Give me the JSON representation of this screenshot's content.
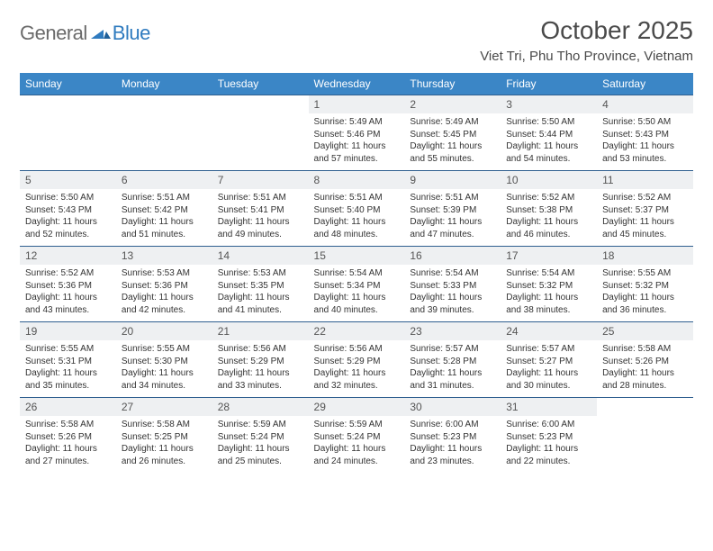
{
  "logo": {
    "text1": "General",
    "text2": "Blue"
  },
  "title": "October 2025",
  "location": "Viet Tri, Phu Tho Province, Vietnam",
  "colors": {
    "header_bg": "#3b86c6",
    "daynum_bg": "#eef0f2",
    "week_divider": "#2f5f8f",
    "text": "#333333",
    "title_text": "#4a4a4a",
    "logo_gray": "#6a6a6a",
    "logo_blue": "#2f7bbf"
  },
  "typography": {
    "title_fontsize": 28,
    "location_fontsize": 15,
    "header_fontsize": 12,
    "daynum_fontsize": 12,
    "body_fontsize": 10
  },
  "day_headers": [
    "Sunday",
    "Monday",
    "Tuesday",
    "Wednesday",
    "Thursday",
    "Friday",
    "Saturday"
  ],
  "weeks": [
    [
      null,
      null,
      null,
      {
        "n": "1",
        "sr": "5:49 AM",
        "ss": "5:46 PM",
        "dl": "11 hours and 57 minutes."
      },
      {
        "n": "2",
        "sr": "5:49 AM",
        "ss": "5:45 PM",
        "dl": "11 hours and 55 minutes."
      },
      {
        "n": "3",
        "sr": "5:50 AM",
        "ss": "5:44 PM",
        "dl": "11 hours and 54 minutes."
      },
      {
        "n": "4",
        "sr": "5:50 AM",
        "ss": "5:43 PM",
        "dl": "11 hours and 53 minutes."
      }
    ],
    [
      {
        "n": "5",
        "sr": "5:50 AM",
        "ss": "5:43 PM",
        "dl": "11 hours and 52 minutes."
      },
      {
        "n": "6",
        "sr": "5:51 AM",
        "ss": "5:42 PM",
        "dl": "11 hours and 51 minutes."
      },
      {
        "n": "7",
        "sr": "5:51 AM",
        "ss": "5:41 PM",
        "dl": "11 hours and 49 minutes."
      },
      {
        "n": "8",
        "sr": "5:51 AM",
        "ss": "5:40 PM",
        "dl": "11 hours and 48 minutes."
      },
      {
        "n": "9",
        "sr": "5:51 AM",
        "ss": "5:39 PM",
        "dl": "11 hours and 47 minutes."
      },
      {
        "n": "10",
        "sr": "5:52 AM",
        "ss": "5:38 PM",
        "dl": "11 hours and 46 minutes."
      },
      {
        "n": "11",
        "sr": "5:52 AM",
        "ss": "5:37 PM",
        "dl": "11 hours and 45 minutes."
      }
    ],
    [
      {
        "n": "12",
        "sr": "5:52 AM",
        "ss": "5:36 PM",
        "dl": "11 hours and 43 minutes."
      },
      {
        "n": "13",
        "sr": "5:53 AM",
        "ss": "5:36 PM",
        "dl": "11 hours and 42 minutes."
      },
      {
        "n": "14",
        "sr": "5:53 AM",
        "ss": "5:35 PM",
        "dl": "11 hours and 41 minutes."
      },
      {
        "n": "15",
        "sr": "5:54 AM",
        "ss": "5:34 PM",
        "dl": "11 hours and 40 minutes."
      },
      {
        "n": "16",
        "sr": "5:54 AM",
        "ss": "5:33 PM",
        "dl": "11 hours and 39 minutes."
      },
      {
        "n": "17",
        "sr": "5:54 AM",
        "ss": "5:32 PM",
        "dl": "11 hours and 38 minutes."
      },
      {
        "n": "18",
        "sr": "5:55 AM",
        "ss": "5:32 PM",
        "dl": "11 hours and 36 minutes."
      }
    ],
    [
      {
        "n": "19",
        "sr": "5:55 AM",
        "ss": "5:31 PM",
        "dl": "11 hours and 35 minutes."
      },
      {
        "n": "20",
        "sr": "5:55 AM",
        "ss": "5:30 PM",
        "dl": "11 hours and 34 minutes."
      },
      {
        "n": "21",
        "sr": "5:56 AM",
        "ss": "5:29 PM",
        "dl": "11 hours and 33 minutes."
      },
      {
        "n": "22",
        "sr": "5:56 AM",
        "ss": "5:29 PM",
        "dl": "11 hours and 32 minutes."
      },
      {
        "n": "23",
        "sr": "5:57 AM",
        "ss": "5:28 PM",
        "dl": "11 hours and 31 minutes."
      },
      {
        "n": "24",
        "sr": "5:57 AM",
        "ss": "5:27 PM",
        "dl": "11 hours and 30 minutes."
      },
      {
        "n": "25",
        "sr": "5:58 AM",
        "ss": "5:26 PM",
        "dl": "11 hours and 28 minutes."
      }
    ],
    [
      {
        "n": "26",
        "sr": "5:58 AM",
        "ss": "5:26 PM",
        "dl": "11 hours and 27 minutes."
      },
      {
        "n": "27",
        "sr": "5:58 AM",
        "ss": "5:25 PM",
        "dl": "11 hours and 26 minutes."
      },
      {
        "n": "28",
        "sr": "5:59 AM",
        "ss": "5:24 PM",
        "dl": "11 hours and 25 minutes."
      },
      {
        "n": "29",
        "sr": "5:59 AM",
        "ss": "5:24 PM",
        "dl": "11 hours and 24 minutes."
      },
      {
        "n": "30",
        "sr": "6:00 AM",
        "ss": "5:23 PM",
        "dl": "11 hours and 23 minutes."
      },
      {
        "n": "31",
        "sr": "6:00 AM",
        "ss": "5:23 PM",
        "dl": "11 hours and 22 minutes."
      },
      null
    ]
  ],
  "labels": {
    "sunrise": "Sunrise:",
    "sunset": "Sunset:",
    "daylight": "Daylight:"
  }
}
